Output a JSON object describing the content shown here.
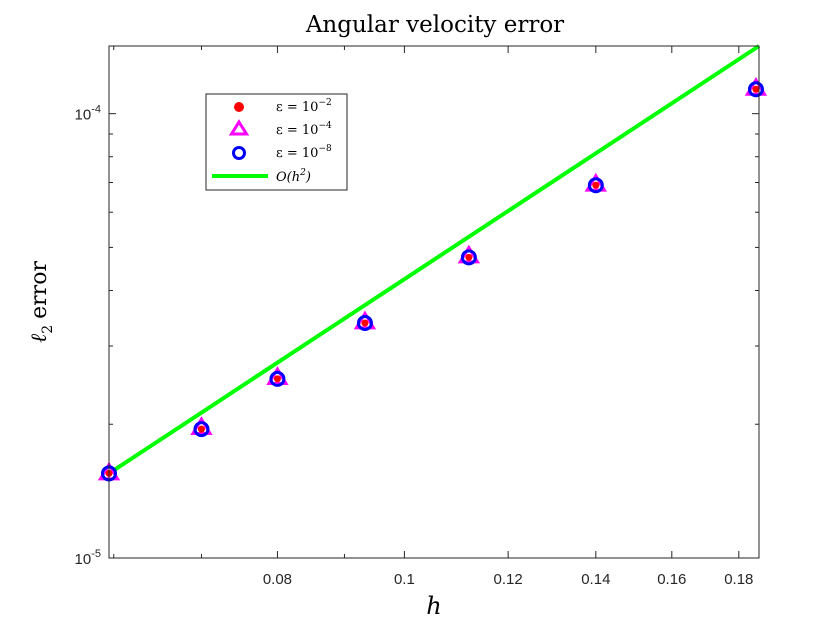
{
  "chart_data": {
    "type": "scatter",
    "title": "Angular velocity error",
    "xlabel": "h",
    "ylabel_sym": "ℓ",
    "ylabel_sub": "2",
    "ylabel_word": "error",
    "xscale": "log",
    "yscale": "log",
    "xlim": [
      0.0595,
      0.1865
    ],
    "ylim": [
      1e-05,
      0.000142
    ],
    "grid": false,
    "legend_position": "upper-left (inside)",
    "x_ticks": [
      {
        "value": 0.08,
        "label": "0.08"
      },
      {
        "value": 0.1,
        "label": "0.1"
      },
      {
        "value": 0.12,
        "label": "0.12"
      },
      {
        "value": 0.14,
        "label": "0.14"
      },
      {
        "value": 0.16,
        "label": "0.16"
      },
      {
        "value": 0.18,
        "label": "0.18"
      }
    ],
    "y_ticks": [
      {
        "value": 1e-05,
        "base": "10",
        "exp": "-5"
      },
      {
        "value": 0.0001,
        "base": "10",
        "exp": "-4"
      }
    ],
    "x_minor_ticks": [
      0.06,
      0.07,
      0.09
    ],
    "y_minor_ticks": [
      2e-05,
      3e-05,
      4e-05,
      5e-05,
      6e-05,
      7e-05,
      8e-05,
      9e-05
    ],
    "x": [
      0.0595,
      0.07,
      0.08,
      0.0933,
      0.112,
      0.14,
      0.1855
    ],
    "series": [
      {
        "name_pre": "ε = 10",
        "name_exp": "−2",
        "marker": "filled-circle",
        "color": "#ff0000",
        "values": [
          1.55e-05,
          1.95e-05,
          2.53e-05,
          3.38e-05,
          4.75e-05,
          6.9e-05,
          0.0001135
        ]
      },
      {
        "name_pre": "ε = 10",
        "name_exp": "−4",
        "marker": "triangle",
        "color": "#ff00ff",
        "values": [
          1.55e-05,
          1.96e-05,
          2.54e-05,
          3.39e-05,
          4.77e-05,
          6.92e-05,
          0.0001137
        ]
      },
      {
        "name_pre": "ε = 10",
        "name_exp": "−8",
        "marker": "circle",
        "color": "#0000ff",
        "values": [
          1.55e-05,
          1.95e-05,
          2.53e-05,
          3.38e-05,
          4.75e-05,
          6.9e-05,
          0.0001135
        ]
      }
    ],
    "reference_line": {
      "name_pre": "O(h",
      "name_exp": "2",
      "name_post": ")",
      "color": "#00ff00",
      "x": [
        0.0595,
        0.1865
      ],
      "y": [
        1.55e-05,
        0.000142
      ]
    }
  }
}
